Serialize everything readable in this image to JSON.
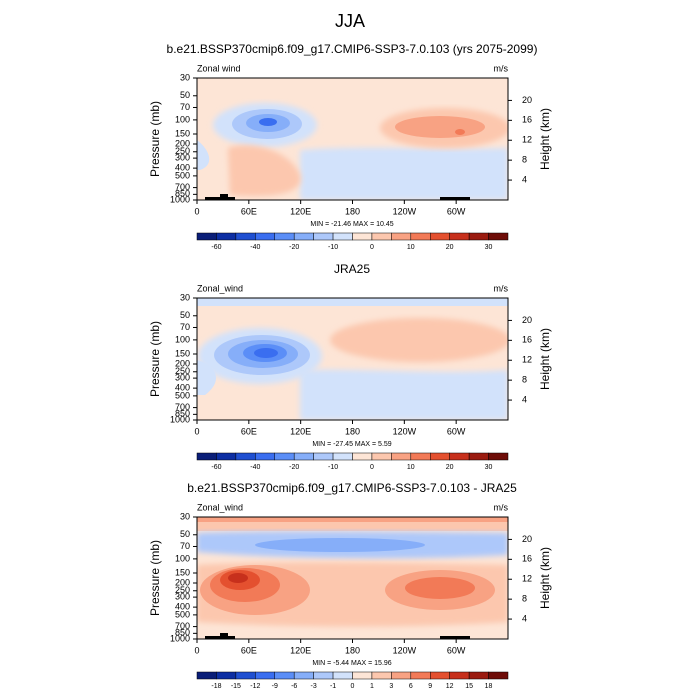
{
  "title": "JJA",
  "chart_data": [
    {
      "type": "contour",
      "title": "b.e21.BSSP370cmip6.f09_g17.CMIP6-SSP3-7.0.103 (yrs 2075-2099)",
      "left_label": "Zonal wind",
      "units": "m/s",
      "ylabel": "Pressure (mb)",
      "y2label": "Height (km)",
      "ylim": [
        1000,
        30
      ],
      "ylog": true,
      "yticks": [
        30,
        50,
        70,
        100,
        150,
        200,
        250,
        300,
        400,
        500,
        700,
        850,
        1000
      ],
      "y2lim": [
        0,
        24.5
      ],
      "y2ticks": [
        4,
        8,
        12,
        16,
        20
      ],
      "xlim": [
        0,
        360
      ],
      "xticks": [
        0,
        {
          "value": 60,
          "label": "60E"
        },
        {
          "value": 120,
          "label": "120E"
        },
        180,
        {
          "value": 240,
          "label": "120W"
        },
        {
          "value": 300,
          "label": "60W"
        }
      ],
      "annotation": "MIN = -21.46  MAX = 10.45",
      "colorbar_labels": [
        -60,
        -40,
        -20,
        -10,
        0,
        10,
        20,
        30
      ],
      "colorbar_colors": [
        "#0a1e78",
        "#0c2ea3",
        "#1f4fd1",
        "#3a6ef0",
        "#5b8ef7",
        "#86aef9",
        "#adc8fa",
        "#d2e2fb",
        "#fde5d6",
        "#fcc7ae",
        "#f8a283",
        "#f27a57",
        "#e4502f",
        "#c7301c",
        "#9b1b10",
        "#6e0c08"
      ]
    },
    {
      "type": "contour",
      "title": "JRA25",
      "left_label": "Zonal_wind",
      "units": "m/s",
      "ylabel": "Pressure (mb)",
      "y2label": "Height (km)",
      "ylim": [
        1000,
        30
      ],
      "ylog": true,
      "yticks": [
        30,
        50,
        70,
        100,
        150,
        200,
        250,
        300,
        400,
        500,
        700,
        850,
        1000
      ],
      "y2lim": [
        0,
        24.5
      ],
      "y2ticks": [
        4,
        8,
        12,
        16,
        20
      ],
      "xlim": [
        0,
        360
      ],
      "xticks": [
        0,
        {
          "value": 60,
          "label": "60E"
        },
        {
          "value": 120,
          "label": "120E"
        },
        180,
        {
          "value": 240,
          "label": "120W"
        },
        {
          "value": 300,
          "label": "60W"
        }
      ],
      "annotation": "MIN = -27.45  MAX =  5.59",
      "colorbar_labels": [
        -60,
        -40,
        -20,
        -10,
        0,
        10,
        20,
        30
      ],
      "colorbar_colors": [
        "#0a1e78",
        "#0c2ea3",
        "#1f4fd1",
        "#3a6ef0",
        "#5b8ef7",
        "#86aef9",
        "#adc8fa",
        "#d2e2fb",
        "#fde5d6",
        "#fcc7ae",
        "#f8a283",
        "#f27a57",
        "#e4502f",
        "#c7301c",
        "#9b1b10",
        "#6e0c08"
      ]
    },
    {
      "type": "contour",
      "title": "b.e21.BSSP370cmip6.f09_g17.CMIP6-SSP3-7.0.103 - JRA25",
      "left_label": "Zonal_wind",
      "units": "m/s",
      "ylabel": "Pressure (mb)",
      "y2label": "Height (km)",
      "ylim": [
        1000,
        30
      ],
      "ylog": true,
      "yticks": [
        30,
        50,
        70,
        100,
        150,
        200,
        250,
        300,
        400,
        500,
        700,
        850,
        1000
      ],
      "y2lim": [
        0,
        24.5
      ],
      "y2ticks": [
        4,
        8,
        12,
        16,
        20
      ],
      "xlim": [
        0,
        360
      ],
      "xticks": [
        0,
        {
          "value": 60,
          "label": "60E"
        },
        {
          "value": 120,
          "label": "120E"
        },
        180,
        {
          "value": 240,
          "label": "120W"
        },
        {
          "value": 300,
          "label": "60W"
        }
      ],
      "annotation": "MIN = -5.44  MAX = 15.96",
      "colorbar_labels": [
        -18,
        -15,
        -12,
        -9,
        -6,
        -3,
        -1,
        0,
        1,
        3,
        6,
        9,
        12,
        15,
        18
      ],
      "colorbar_colors": [
        "#0a1e78",
        "#0c2ea3",
        "#1f4fd1",
        "#3a6ef0",
        "#5b8ef7",
        "#86aef9",
        "#adc8fa",
        "#d2e2fb",
        "#fde5d6",
        "#fcc7ae",
        "#f8a283",
        "#f27a57",
        "#e4502f",
        "#c7301c",
        "#9b1b10",
        "#6e0c08"
      ]
    }
  ]
}
